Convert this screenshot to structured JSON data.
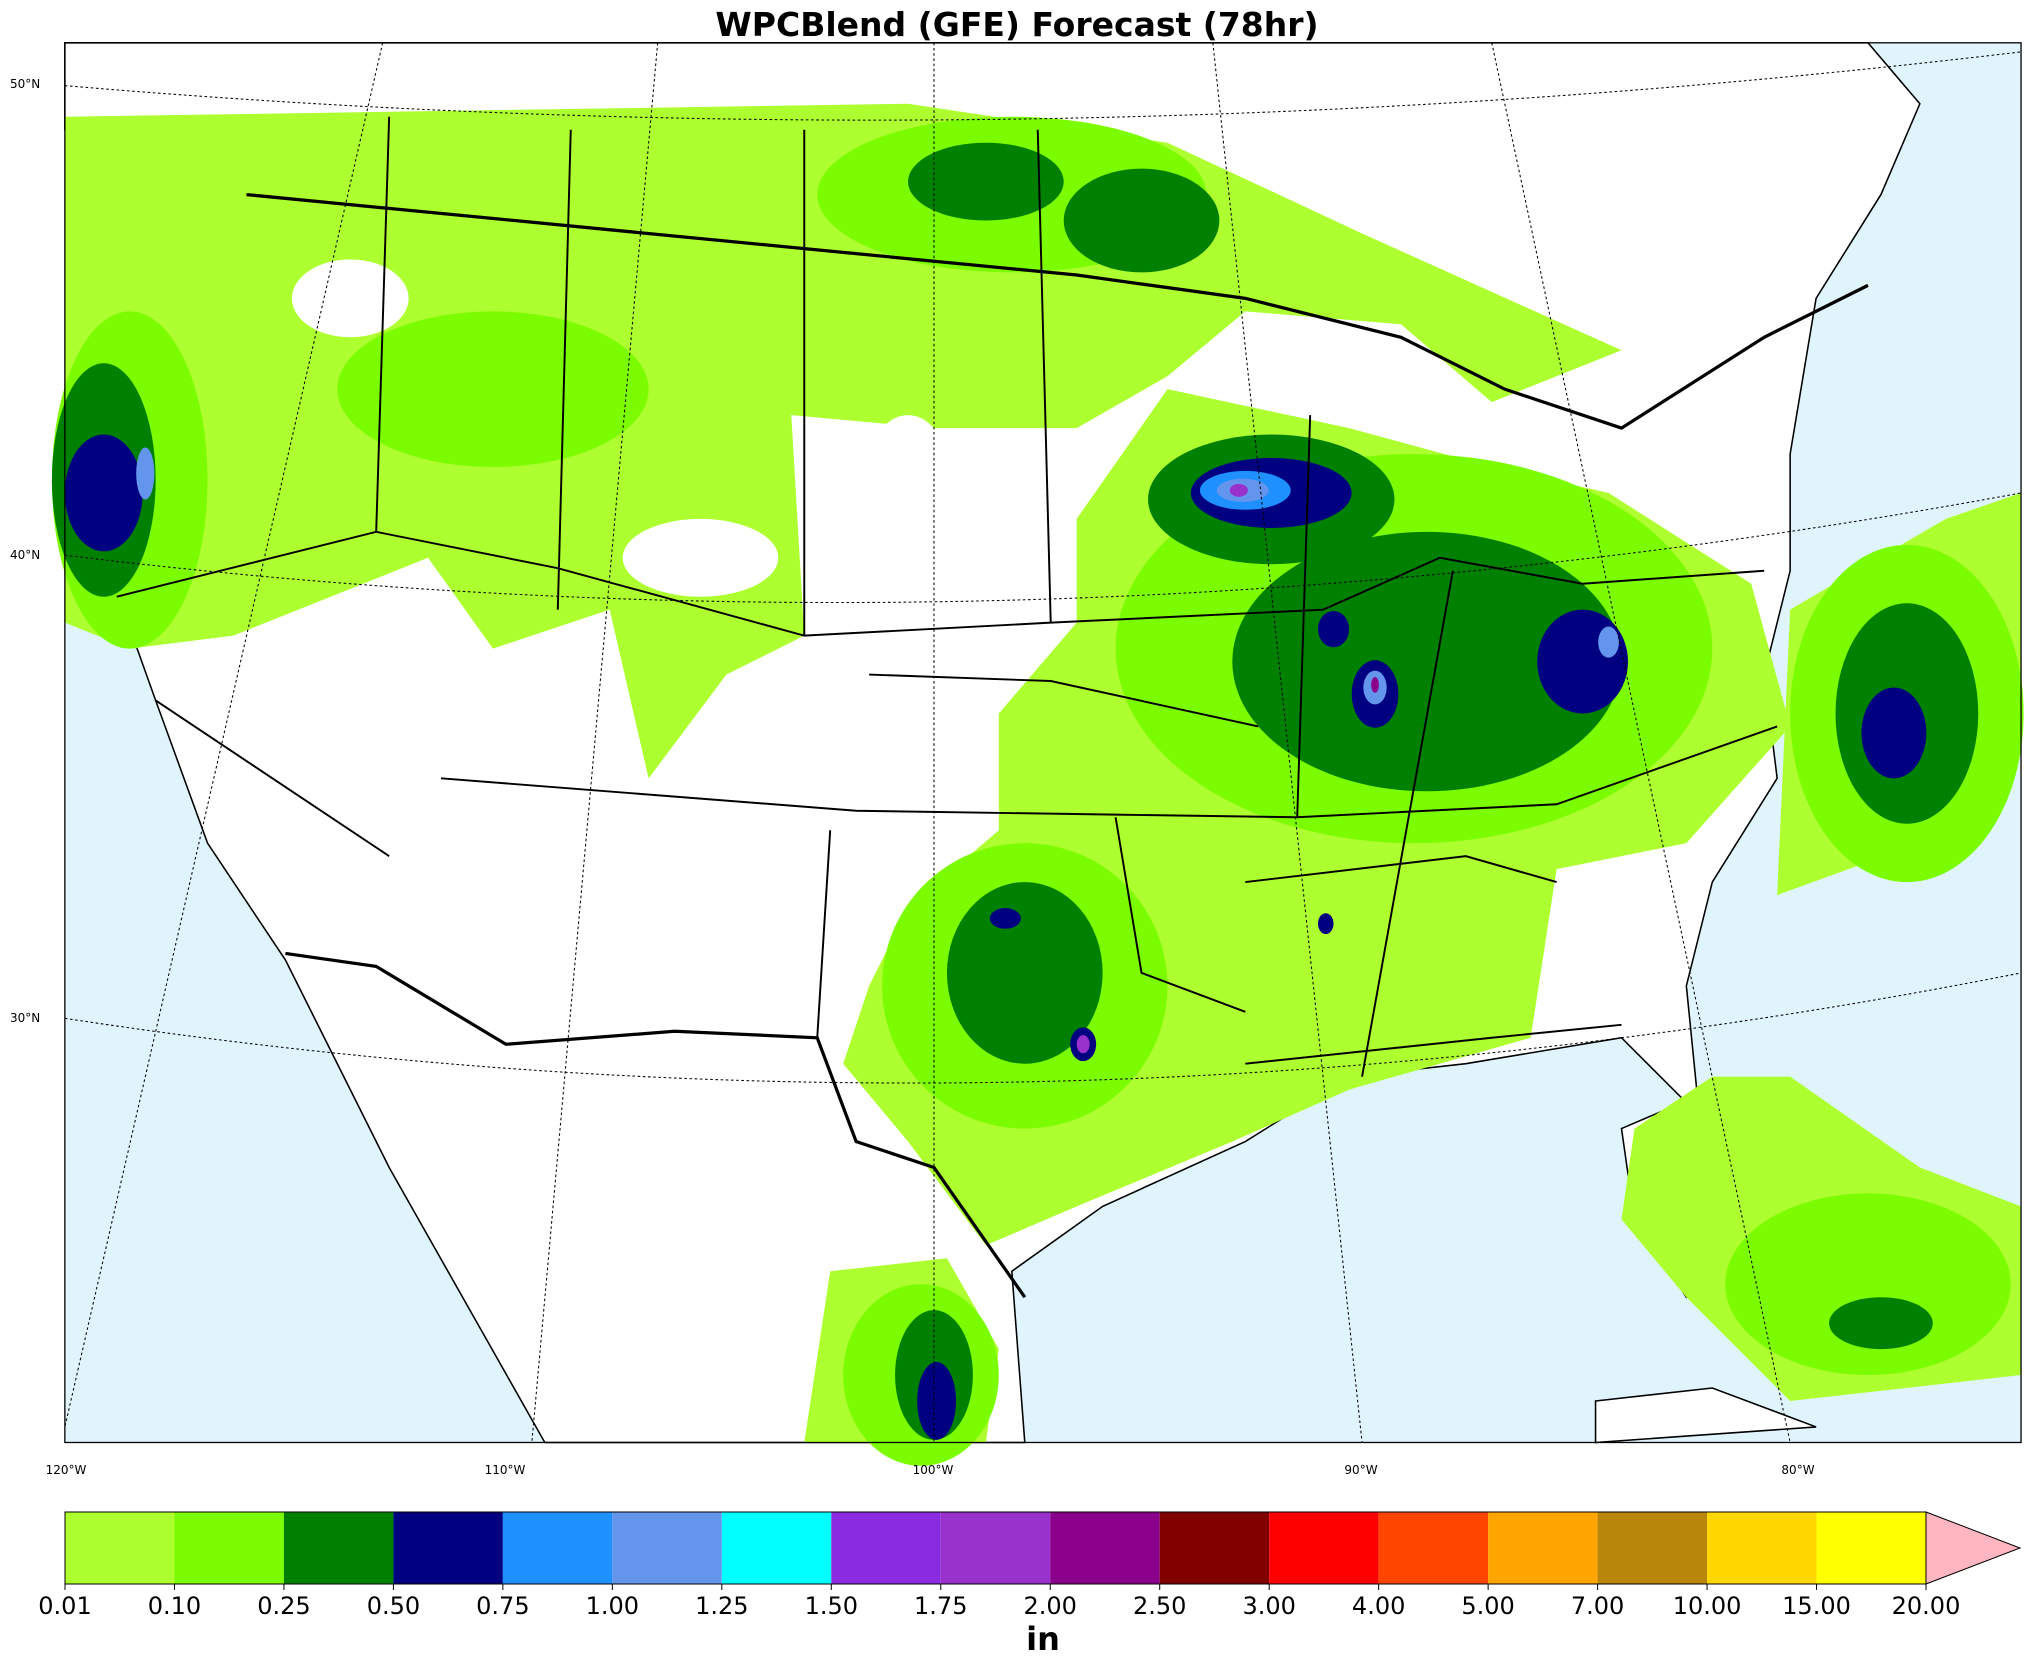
{
  "title": "WPCBlend (GFE) Forecast (78hr)",
  "graticule": {
    "lat_labels": [
      "50°N",
      "40°N",
      "30°N"
    ],
    "lon_labels": [
      "120°W",
      "110°W",
      "100°W",
      "90°W",
      "80°W"
    ]
  },
  "colorbar": {
    "label": "in",
    "levels": [
      0.01,
      {
        "value": 0.1,
        "label": "0.10"
      },
      0.25,
      {
        "value": 0.5,
        "label": "0.50"
      },
      0.75,
      {
        "value": 1,
        "label": "1.00"
      },
      1.25,
      {
        "value": 1.5,
        "label": "1.50"
      },
      1.75,
      {
        "value": 2,
        "label": "2.00"
      },
      {
        "value": 2.5,
        "label": "2.50"
      },
      {
        "value": 3,
        "label": "3.00"
      },
      {
        "value": 4,
        "label": "4.00"
      },
      {
        "value": 5,
        "label": "5.00"
      },
      {
        "value": 7,
        "label": "7.00"
      },
      {
        "value": 10,
        "label": "10.00"
      },
      {
        "value": 15,
        "label": "15.00"
      },
      {
        "value": 20,
        "label": "20.00"
      }
    ],
    "colors": [
      "#adff2f",
      "#7cfc00",
      "#008000",
      "#000080",
      "#1e90ff",
      "#6495ed",
      "#00ffff",
      "#8a2be2",
      "#9932cc",
      "#8b008b",
      "#800000",
      "#ff0000",
      "#ff4500",
      "#ffa500",
      "#b8860b",
      "#ffd700",
      "#ffff00"
    ],
    "extend_color": "#ffb6c1"
  }
}
